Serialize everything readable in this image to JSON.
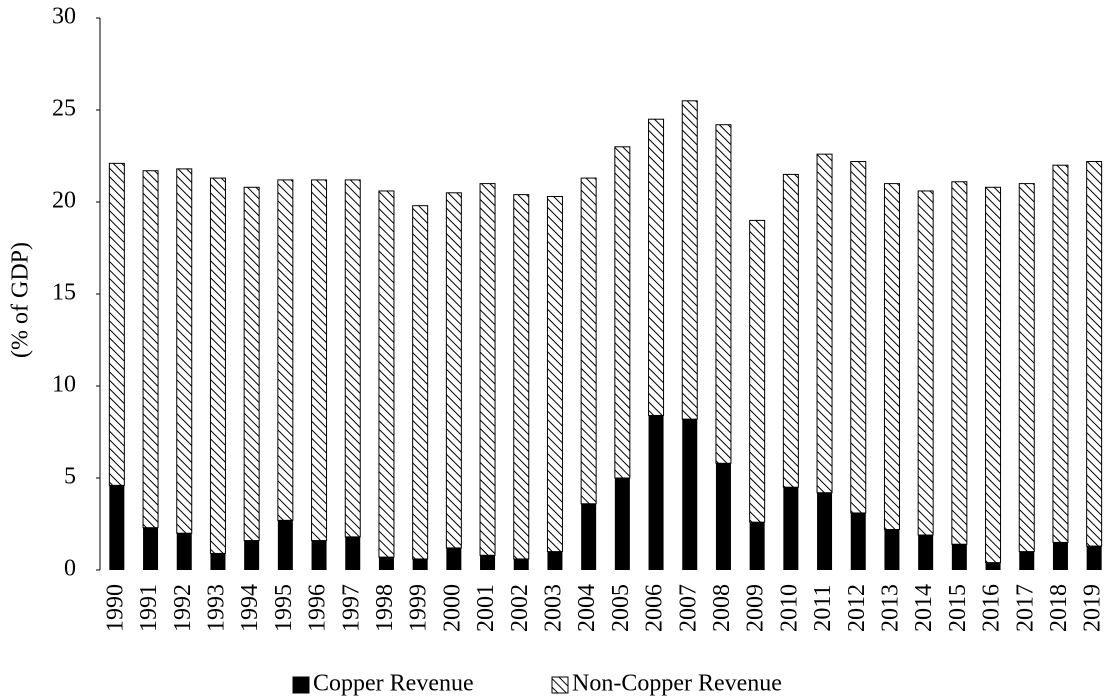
{
  "chart_data": {
    "type": "stacked_bar",
    "y_label": "(% of GDP)",
    "categories": [
      "1990",
      "1991",
      "1992",
      "1993",
      "1994",
      "1995",
      "1996",
      "1997",
      "1998",
      "1999",
      "2000",
      "2001",
      "2002",
      "2003",
      "2004",
      "2005",
      "2006",
      "2007",
      "2008",
      "2009",
      "2010",
      "2011",
      "2012",
      "2013",
      "2014",
      "2015",
      "2016",
      "2017",
      "2018",
      "2019"
    ],
    "series": [
      {
        "name": "Copper Revenue",
        "color": "#000000",
        "pattern": "solid",
        "values": [
          4.6,
          2.3,
          2.0,
          0.9,
          1.6,
          2.7,
          1.6,
          1.8,
          0.7,
          0.6,
          1.2,
          0.8,
          0.6,
          1.0,
          3.6,
          5.0,
          8.4,
          8.2,
          5.8,
          2.6,
          4.5,
          4.2,
          3.1,
          2.2,
          1.9,
          1.4,
          0.4,
          1.0,
          1.5,
          1.3
        ]
      },
      {
        "name": "Non-Copper Revenue",
        "color": "#000000",
        "pattern": "hatch",
        "values": [
          17.5,
          19.4,
          19.8,
          20.4,
          19.2,
          18.5,
          19.6,
          19.4,
          19.9,
          19.2,
          19.3,
          20.2,
          19.8,
          19.3,
          17.7,
          18.0,
          16.1,
          17.3,
          18.4,
          16.4,
          17.0,
          18.4,
          19.1,
          18.8,
          18.7,
          19.7,
          20.4,
          20.0,
          20.5,
          20.9
        ]
      }
    ],
    "ylim": [
      0,
      30
    ],
    "yticks": [
      0,
      5,
      10,
      15,
      20,
      25,
      30
    ],
    "legend": "bottom"
  }
}
